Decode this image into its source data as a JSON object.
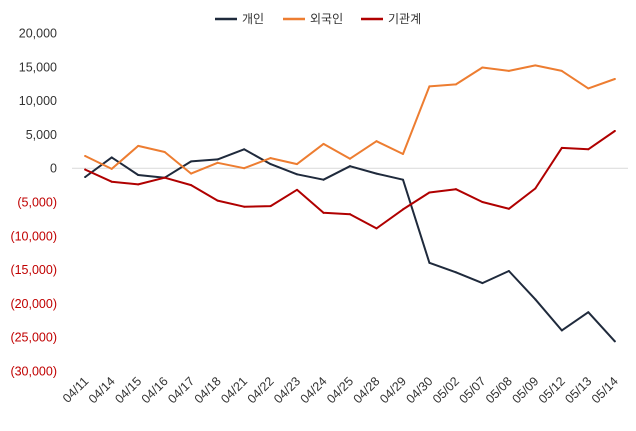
{
  "chart_data": {
    "type": "line",
    "title": "",
    "xlabel": "",
    "ylabel": "",
    "ylim": [
      -30000,
      20000
    ],
    "yticks": [
      20000,
      15000,
      10000,
      5000,
      0,
      -5000,
      -10000,
      -15000,
      -20000,
      -25000,
      -30000
    ],
    "ytick_labels": [
      "20,000",
      "15,000",
      "10,000",
      "5,000",
      "0",
      "(5,000)",
      "(10,000)",
      "(15,000)",
      "(20,000)",
      "(25,000)",
      "(30,000)"
    ],
    "negative_label_color": "#c00000",
    "positive_label_color": "#333333",
    "legend_position": "top-center",
    "categories": [
      "04/11",
      "04/14",
      "04/15",
      "04/16",
      "04/17",
      "04/18",
      "04/21",
      "04/22",
      "04/23",
      "04/24",
      "04/25",
      "04/28",
      "04/29",
      "04/30",
      "05/02",
      "05/07",
      "05/08",
      "05/09",
      "05/12",
      "05/13",
      "05/14"
    ],
    "series": [
      {
        "name": "개인",
        "color": "#1f2a3c",
        "values": [
          -1300,
          1600,
          -1000,
          -1400,
          1000,
          1300,
          2800,
          600,
          -900,
          -1700,
          300,
          -800,
          -1700,
          -14000,
          -15400,
          -17000,
          -15200,
          -19400,
          -24000,
          -21300,
          -25600
        ]
      },
      {
        "name": "외국인",
        "color": "#ed7d31",
        "values": [
          1800,
          -100,
          3300,
          2400,
          -800,
          800,
          0,
          1500,
          600,
          3600,
          1400,
          4000,
          2100,
          12100,
          12400,
          14900,
          14400,
          15200,
          14400,
          11800,
          13200
        ]
      },
      {
        "name": "기관계",
        "color": "#b00000",
        "values": [
          -200,
          -2000,
          -2400,
          -1400,
          -2500,
          -4800,
          -5700,
          -5600,
          -3200,
          -6600,
          -6800,
          -8900,
          -6100,
          -3600,
          -3100,
          -5000,
          -6000,
          -3000,
          3000,
          2800,
          5500
        ]
      }
    ]
  }
}
